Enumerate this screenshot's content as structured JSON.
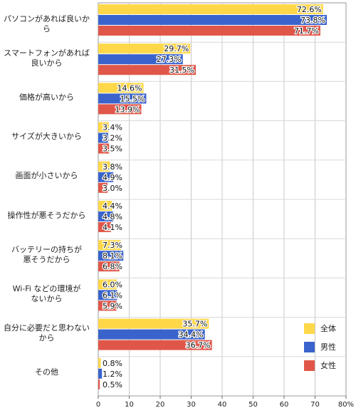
{
  "chart_data": {
    "type": "bar",
    "orientation": "horizontal",
    "categories": [
      "パソコンがあれば良いから",
      "スマートフォンがあれば\n良いから",
      "価格が高いから",
      "サイズが大きいから",
      "画面が小さいから",
      "操作性が悪そうだから",
      "バッテリーの持ちが\n悪そうだから",
      "Wi-Fi などの環境が\nないから",
      "自分に必要だと思わない\nから",
      "その他"
    ],
    "series": [
      {
        "name": "全体",
        "color": "#FFD84A",
        "values": [
          72.6,
          29.7,
          14.6,
          3.4,
          3.8,
          4.4,
          7.3,
          6.0,
          35.7,
          0.8
        ]
      },
      {
        "name": "男性",
        "color": "#3A64CC",
        "values": [
          73.8,
          27.3,
          15.5,
          3.2,
          4.9,
          4.8,
          8.1,
          6.1,
          34.4,
          1.2
        ]
      },
      {
        "name": "女性",
        "color": "#E0574A",
        "values": [
          71.7,
          31.5,
          13.9,
          3.5,
          3.0,
          4.1,
          6.8,
          5.9,
          36.7,
          0.5
        ]
      }
    ],
    "value_labels": [
      [
        "72.6%",
        "29.7%",
        "14.6%",
        "3.4%",
        "3.8%",
        "4.4%",
        "7.3%",
        "6.0%",
        "35.7%",
        "0.8%"
      ],
      [
        "73.8%",
        "27.3%",
        "15.5%",
        "3.2%",
        "4.9%",
        "4.8%",
        "8.1%",
        "6.1%",
        "34.4%",
        "1.2%"
      ],
      [
        "71.7%",
        "31.5%",
        "13.9%",
        "3.5%",
        "3.0%",
        "4.1%",
        "6.8%",
        "5.9%",
        "36.7%",
        "0.5%"
      ]
    ],
    "xlim": [
      0,
      80
    ],
    "xticks": [
      "0",
      "10",
      "20",
      "30",
      "40",
      "50",
      "60",
      "70",
      "80%"
    ],
    "grid": true,
    "legend_position": "bottom-right"
  }
}
